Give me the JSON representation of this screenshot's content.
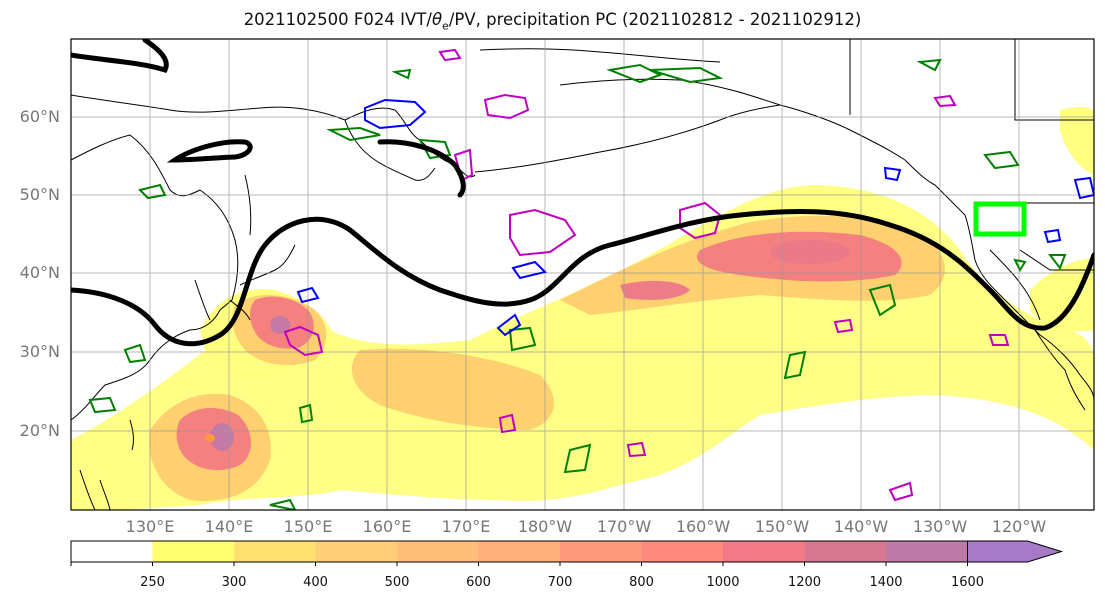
{
  "title": {
    "prefix": "2021102500 F024 IVT/",
    "theta": "θ",
    "theta_sub": "e",
    "suffix": "/PV, precipitation PC (2021102812 - 2021102912)"
  },
  "map": {
    "lat_labels": [
      "60°N",
      "50°N",
      "40°N",
      "30°N",
      "20°N"
    ],
    "lon_labels": [
      "130°E",
      "140°E",
      "150°E",
      "160°E",
      "170°E",
      "180°W",
      "170°W",
      "160°W",
      "150°W",
      "140°W",
      "130°W",
      "120°W"
    ],
    "colors": {
      "pv_contour": "#000000",
      "theta_e_contour": "#008000",
      "ivt_blue": "#0000ff",
      "ivt_magenta": "#c000c0",
      "highlight_box": "#00ff00",
      "coastline": "#000000",
      "grid": "#999999"
    }
  },
  "colorbar": {
    "ticks": [
      "250",
      "300",
      "400",
      "500",
      "600",
      "700",
      "800",
      "1000",
      "1200",
      "1400",
      "1600"
    ],
    "colors": [
      "#ffffff",
      "#ffff70",
      "#ffe070",
      "#ffcf78",
      "#ffbf78",
      "#ffb07a",
      "#ff9a7c",
      "#ff8a80",
      "#f27a86",
      "#d87890",
      "#bb7aa8",
      "#a77ac8"
    ],
    "extend": "max"
  }
}
